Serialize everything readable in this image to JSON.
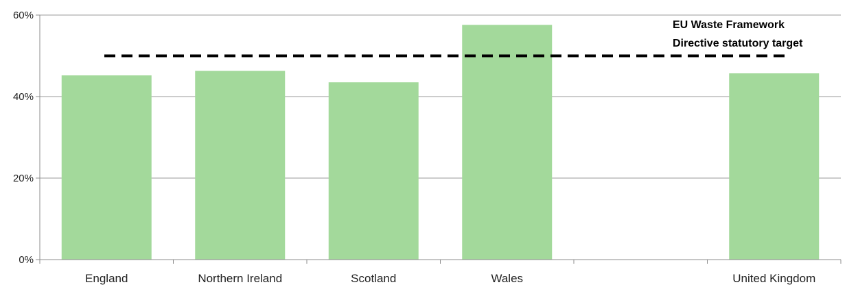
{
  "chart_data": {
    "type": "bar",
    "title": "",
    "xlabel": "",
    "ylabel": "",
    "categories": [
      "England",
      "Northern Ireland",
      "Scotland",
      "Wales",
      "",
      "United Kingdom"
    ],
    "values": [
      45.2,
      46.3,
      43.5,
      57.6,
      null,
      45.7
    ],
    "ylim": [
      0,
      60
    ],
    "yticks": [
      0,
      20,
      40,
      60
    ],
    "ytick_labels": [
      "0%",
      "20%",
      "40%",
      "60%"
    ],
    "grid": true,
    "legend": "none",
    "bar_color": "#a3d99b",
    "reference_line": {
      "value": 50,
      "style": "dashed",
      "color": "#000000",
      "label_lines": [
        "EU Waste Framework",
        "Directive statutory target"
      ]
    }
  }
}
